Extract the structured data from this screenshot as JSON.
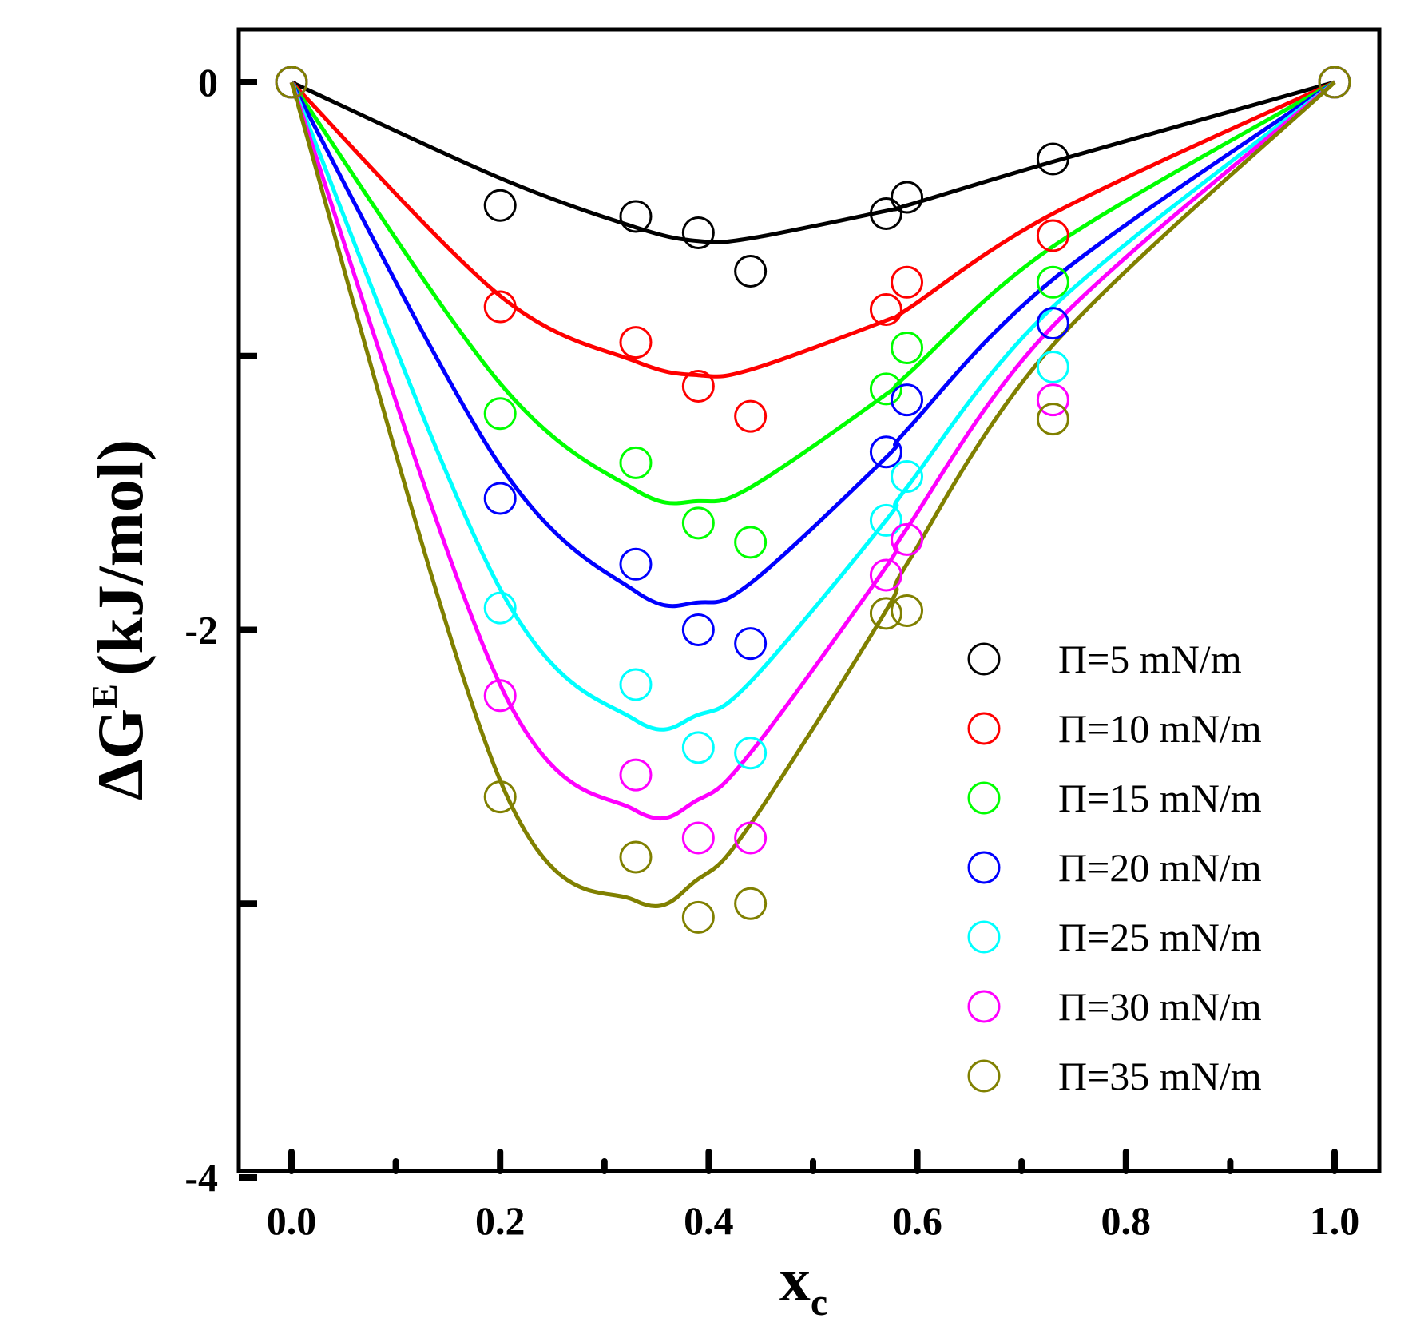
{
  "chart_data": {
    "type": "scatter",
    "title": "",
    "xlabel": "x",
    "xlabel_sub": "c",
    "ylabel_prefix": "ΔG",
    "ylabel_sup": "E",
    "ylabel_unit": "(kJ/mol)",
    "xlim": [
      -0.05,
      1.05
    ],
    "ylim": [
      -4,
      0.2
    ],
    "x_ticks": [
      0.0,
      0.2,
      0.4,
      0.6,
      0.8,
      1.0
    ],
    "x_tick_labels": [
      "0.0",
      "0.2",
      "0.4",
      "0.6",
      "0.8",
      "1.0"
    ],
    "x_minor_ticks": [
      0.1,
      0.3,
      0.5,
      0.7,
      0.9
    ],
    "y_ticks": [
      0,
      -1,
      -2,
      -3,
      -4
    ],
    "y_tick_labels": [
      "0",
      "",
      "-2",
      "",
      "-4"
    ],
    "legend_position": "bottom-right",
    "x": [
      0,
      0.2,
      0.33,
      0.39,
      0.44,
      0.57,
      0.59,
      0.73,
      1.0
    ],
    "series": [
      {
        "name": "Π=5 mN/m",
        "color": "#000000",
        "points": [
          0,
          -0.45,
          -0.49,
          -0.55,
          -0.69,
          -0.48,
          -0.42,
          -0.28,
          0
        ],
        "curve": [
          0,
          -0.35,
          -0.53,
          -0.58,
          -0.57,
          -0.47,
          -0.45,
          -0.29,
          0
        ]
      },
      {
        "name": "Π=10 mN/m",
        "color": "#ff0000",
        "points": [
          0,
          -0.82,
          -0.95,
          -1.11,
          -1.22,
          -0.83,
          -0.73,
          -0.56,
          0
        ],
        "curve": [
          0,
          -0.78,
          -1.02,
          -1.07,
          -1.05,
          -0.87,
          -0.83,
          -0.48,
          0
        ]
      },
      {
        "name": "Π=15 mN/m",
        "color": "#00ff00",
        "points": [
          0,
          -1.21,
          -1.39,
          -1.61,
          -1.68,
          -1.12,
          -0.97,
          -0.73,
          0
        ],
        "curve": [
          0,
          -1.1,
          -1.49,
          -1.53,
          -1.48,
          -1.14,
          -1.07,
          -0.6,
          0
        ]
      },
      {
        "name": "Π=20 mN/m",
        "color": "#0000ff",
        "points": [
          0,
          -1.52,
          -1.76,
          -2.0,
          -2.05,
          -1.35,
          -1.16,
          -0.88,
          0
        ],
        "curve": [
          0,
          -1.4,
          -1.86,
          -1.9,
          -1.83,
          -1.37,
          -1.27,
          -0.72,
          0
        ]
      },
      {
        "name": "Π=25 mN/m",
        "color": "#00ffff",
        "points": [
          0,
          -1.92,
          -2.2,
          -2.43,
          -2.45,
          -1.6,
          -1.44,
          -1.04,
          0
        ],
        "curve": [
          0,
          -1.85,
          -2.33,
          -2.31,
          -2.19,
          -1.6,
          -1.48,
          -0.82,
          0
        ]
      },
      {
        "name": "Π=30 mN/m",
        "color": "#ff00ff",
        "points": [
          0,
          -2.24,
          -2.53,
          -2.76,
          -2.76,
          -1.8,
          -1.67,
          -1.16,
          0
        ],
        "curve": [
          0,
          -2.2,
          -2.66,
          -2.62,
          -2.45,
          -1.77,
          -1.63,
          -0.89,
          0
        ]
      },
      {
        "name": "Π=35 mN/m",
        "color": "#808000",
        "points": [
          0,
          -2.61,
          -2.83,
          -3.05,
          -3.0,
          -1.94,
          -1.93,
          -1.23,
          0
        ],
        "curve": [
          0,
          -2.55,
          -2.99,
          -2.91,
          -2.71,
          -1.93,
          -1.76,
          -0.96,
          0
        ]
      }
    ]
  }
}
